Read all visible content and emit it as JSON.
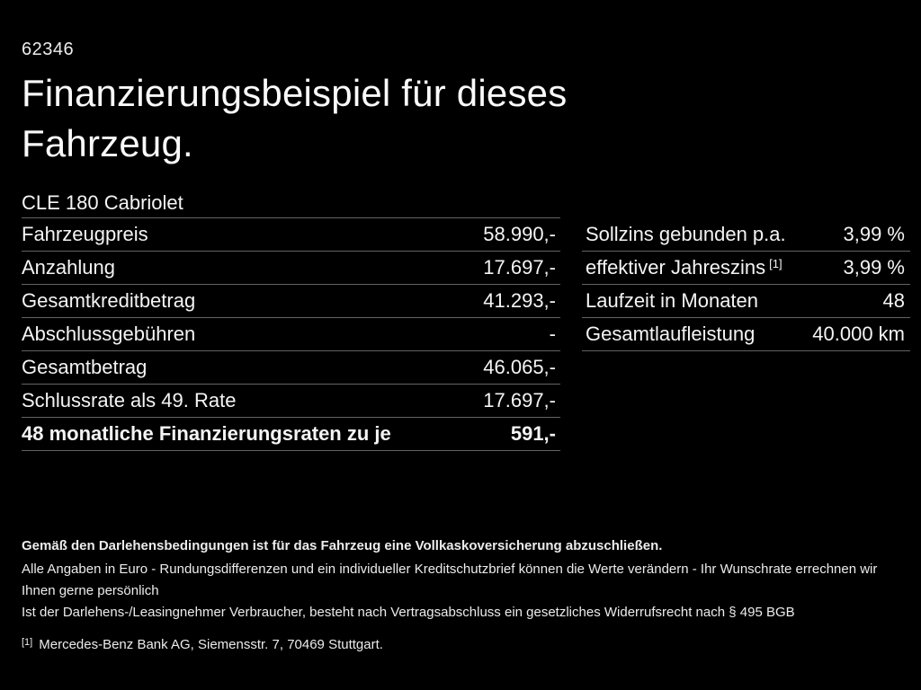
{
  "page": {
    "doc_number": "62346",
    "title": "Finanzierungsbeispiel für dieses\nFahrzeug.",
    "model": "CLE 180 Cabriolet"
  },
  "colors": {
    "background": "#000000",
    "text": "#f4f4f4",
    "divider": "#636363"
  },
  "finance_table": {
    "rows": [
      {
        "label": "Fahrzeugpreis",
        "value": "58.990,-"
      },
      {
        "label": "Anzahlung",
        "value": "17.697,-"
      },
      {
        "label": "Gesamtkreditbetrag",
        "value": "41.293,-"
      },
      {
        "label": "Abschlussgebühren",
        "value": "-"
      },
      {
        "label": "Gesamtbetrag",
        "value": "46.065,-"
      },
      {
        "label": "Schlussrate als 49. Rate",
        "value": "17.697,-"
      },
      {
        "label": "48 monatliche Finanzierungsraten zu je",
        "value": "591,-"
      }
    ]
  },
  "terms_table": {
    "rows": [
      {
        "label": "Sollzins gebunden p.a.",
        "value": "3,99 %"
      },
      {
        "label": "effektiver Jahreszins",
        "sup": "[1]",
        "value": "3,99 %"
      },
      {
        "label": "Laufzeit in Monaten",
        "value": "48"
      },
      {
        "label": "Gesamtlaufleistung",
        "value": "40.000 km"
      }
    ]
  },
  "footer": {
    "bold_note": "Gemäß den Darlehensbedingungen ist für das Fahrzeug eine Vollkaskoversicherung abzuschließen.",
    "note1": "Alle Angaben in Euro - Rundungsdifferenzen und ein individueller Kreditschutzbrief können die Werte verändern - Ihr Wunschrate errechnen wir Ihnen gerne persönlich",
    "note2": "Ist der Darlehens-/Leasingnehmer Verbraucher, besteht nach Vertragsabschluss ein gesetzliches Widerrufsrecht nach § 495 BGB",
    "footnote_marker": "[1]",
    "footnote_text": "Mercedes-Benz Bank AG, Siemensstr. 7, 70469 Stuttgart."
  }
}
